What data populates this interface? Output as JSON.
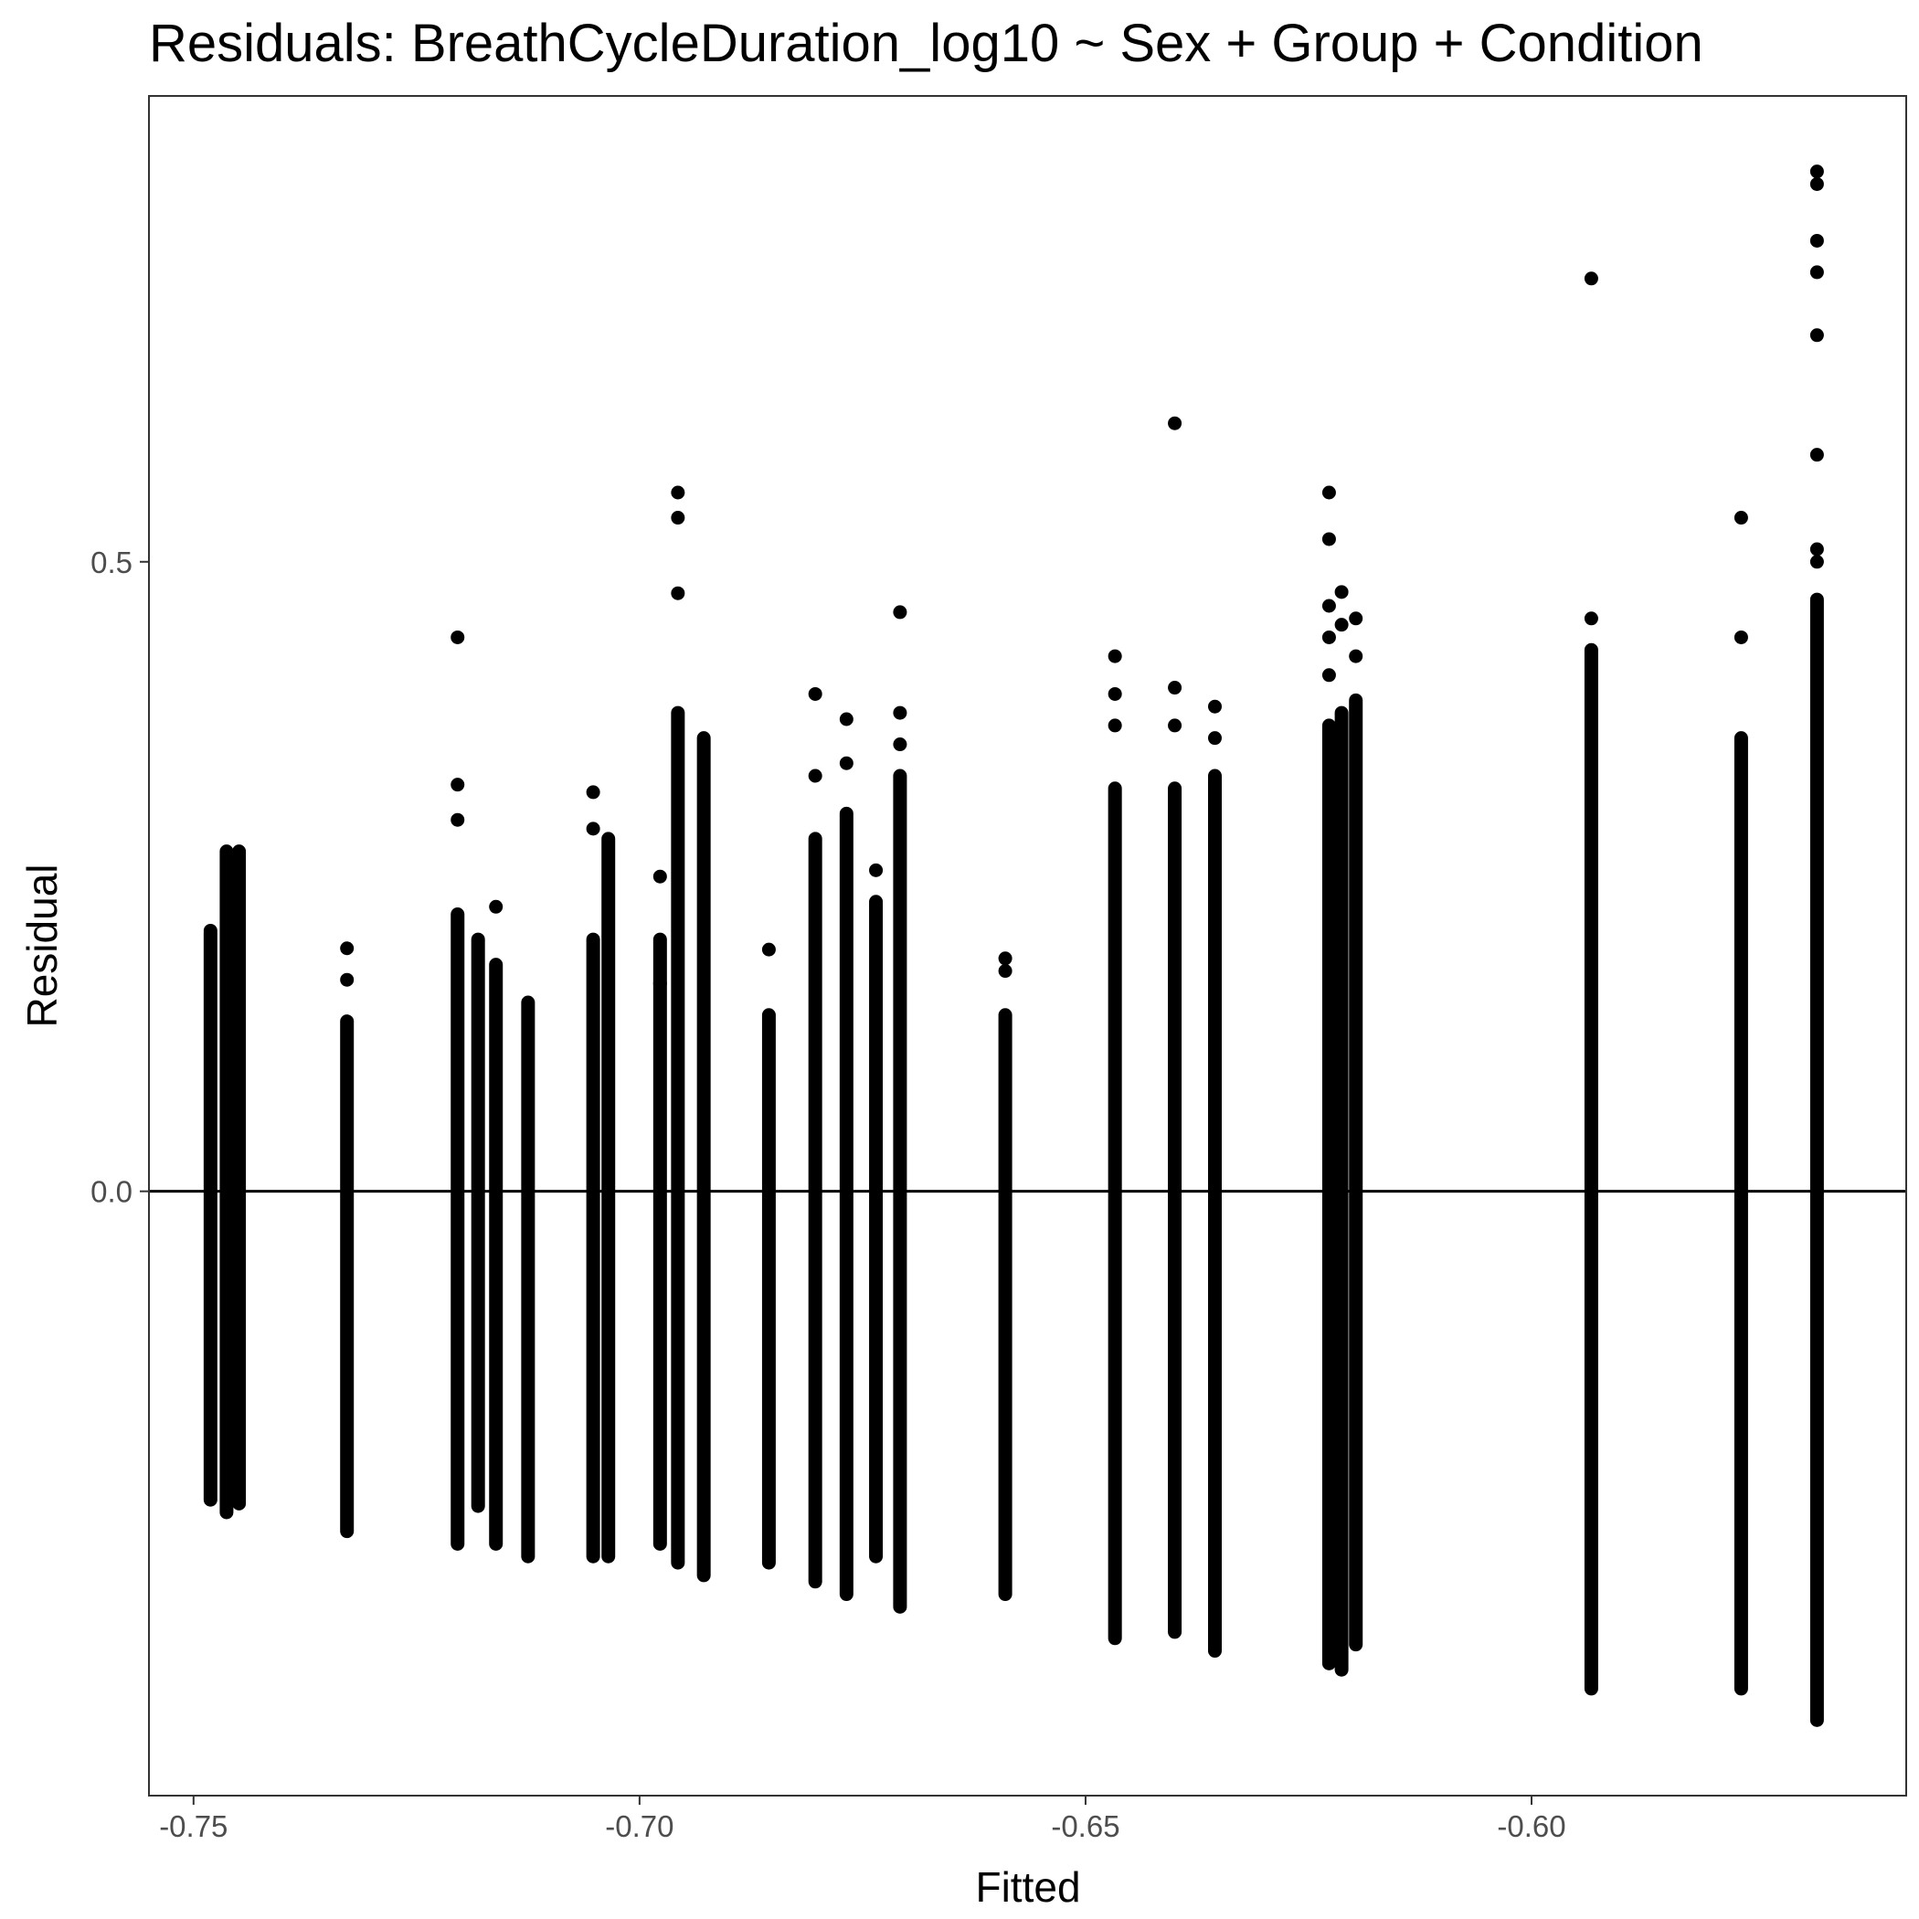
{
  "chart_data": {
    "type": "scatter",
    "title": "Residuals: BreathCycleDuration_log10 ~ Sex + Group + Condition",
    "xlabel": "Fitted",
    "ylabel": "Residual",
    "xlim": [
      -0.755,
      -0.558
    ],
    "ylim": [
      -0.48,
      0.87
    ],
    "x_ticks": [
      -0.75,
      -0.7,
      -0.65,
      -0.6
    ],
    "x_tick_labels": [
      "-0.75",
      "-0.70",
      "-0.65",
      "-0.60"
    ],
    "y_ticks": [
      0.0,
      0.5
    ],
    "y_tick_labels": [
      "0.0",
      "0.5"
    ],
    "reference_line": 0.0,
    "grid": false,
    "point_color": "#000000",
    "columns": [
      {
        "x": -0.7481,
        "ymin": -0.245,
        "ymax": 0.205,
        "outliers": [
          0.207
        ]
      },
      {
        "x": -0.7463,
        "ymin": -0.255,
        "ymax": 0.27,
        "outliers": []
      },
      {
        "x": -0.7449,
        "ymin": -0.248,
        "ymax": 0.27,
        "outliers": []
      },
      {
        "x": -0.7328,
        "ymin": -0.27,
        "ymax": 0.135,
        "outliers": [
          0.193,
          0.168
        ]
      },
      {
        "x": -0.7204,
        "ymin": -0.28,
        "ymax": 0.22,
        "outliers": [
          0.44,
          0.323,
          0.295
        ]
      },
      {
        "x": -0.7181,
        "ymin": -0.25,
        "ymax": 0.2,
        "outliers": []
      },
      {
        "x": -0.7161,
        "ymin": -0.28,
        "ymax": 0.18,
        "outliers": [
          0.226
        ]
      },
      {
        "x": -0.7125,
        "ymin": -0.29,
        "ymax": 0.15,
        "outliers": []
      },
      {
        "x": -0.7052,
        "ymin": -0.29,
        "ymax": 0.2,
        "outliers": [
          0.317,
          0.288
        ]
      },
      {
        "x": -0.7035,
        "ymin": -0.29,
        "ymax": 0.28,
        "outliers": []
      },
      {
        "x": -0.6977,
        "ymin": -0.28,
        "ymax": 0.2,
        "outliers": [
          0.25,
          0.165
        ]
      },
      {
        "x": -0.6957,
        "ymin": -0.295,
        "ymax": 0.38,
        "outliers": [
          0.555,
          0.535,
          0.475
        ]
      },
      {
        "x": -0.6928,
        "ymin": -0.305,
        "ymax": 0.36,
        "outliers": []
      },
      {
        "x": -0.6855,
        "ymin": -0.295,
        "ymax": 0.14,
        "outliers": [
          0.192
        ]
      },
      {
        "x": -0.6803,
        "ymin": -0.31,
        "ymax": 0.28,
        "outliers": [
          0.395,
          0.33
        ]
      },
      {
        "x": -0.6768,
        "ymin": -0.32,
        "ymax": 0.3,
        "outliers": [
          0.375,
          0.34
        ]
      },
      {
        "x": -0.6735,
        "ymin": -0.29,
        "ymax": 0.23,
        "outliers": [
          0.255
        ]
      },
      {
        "x": -0.6708,
        "ymin": -0.33,
        "ymax": 0.33,
        "outliers": [
          0.46,
          0.38,
          0.355
        ]
      },
      {
        "x": -0.659,
        "ymin": -0.32,
        "ymax": 0.14,
        "outliers": [
          0.185,
          0.175
        ]
      },
      {
        "x": -0.6467,
        "ymin": -0.355,
        "ymax": 0.32,
        "outliers": [
          0.425,
          0.395,
          0.37
        ]
      },
      {
        "x": -0.64,
        "ymin": -0.35,
        "ymax": 0.32,
        "outliers": [
          0.61,
          0.4,
          0.37
        ]
      },
      {
        "x": -0.6355,
        "ymin": -0.365,
        "ymax": 0.33,
        "outliers": [
          0.385,
          0.36
        ]
      },
      {
        "x": -0.6227,
        "ymin": -0.375,
        "ymax": 0.37,
        "outliers": [
          0.555,
          0.518,
          0.465,
          0.44,
          0.41
        ]
      },
      {
        "x": -0.6213,
        "ymin": -0.38,
        "ymax": 0.38,
        "outliers": [
          0.476,
          0.45
        ]
      },
      {
        "x": -0.6197,
        "ymin": -0.36,
        "ymax": 0.39,
        "outliers": [
          0.455,
          0.425
        ]
      },
      {
        "x": -0.5933,
        "ymin": -0.395,
        "ymax": 0.43,
        "outliers": [
          0.725,
          0.455
        ]
      },
      {
        "x": -0.5765,
        "ymin": -0.395,
        "ymax": 0.36,
        "outliers": [
          0.535,
          0.44
        ]
      },
      {
        "x": -0.568,
        "ymin": -0.42,
        "ymax": 0.47,
        "outliers": [
          0.81,
          0.8,
          0.755,
          0.73,
          0.68,
          0.585,
          0.51,
          0.5
        ]
      }
    ]
  }
}
